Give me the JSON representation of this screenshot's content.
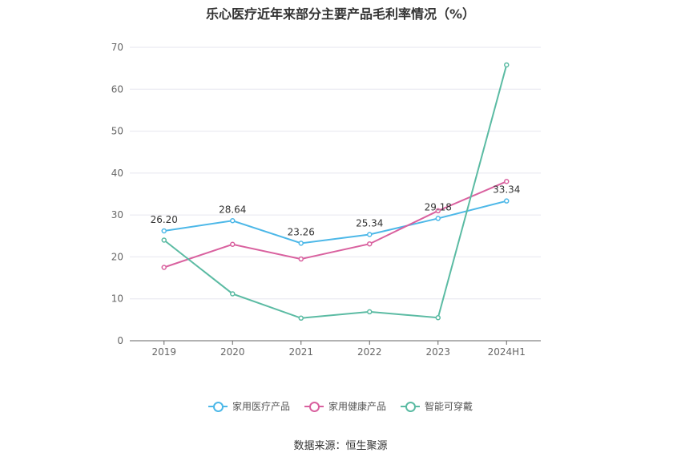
{
  "chart_data": {
    "type": "line",
    "title": "乐心医疗近年来部分主要产品毛利率情况（%）",
    "categories": [
      "2019",
      "2020",
      "2021",
      "2022",
      "2023",
      "2024H1"
    ],
    "ylim": [
      0,
      70
    ],
    "yticks": [
      0,
      10,
      20,
      30,
      40,
      50,
      60,
      70
    ],
    "grid": true,
    "legend_position": "bottom",
    "series": [
      {
        "name": "家用医疗产品",
        "color": "#4db8e8",
        "values": [
          26.2,
          28.64,
          23.26,
          25.34,
          29.18,
          33.34
        ],
        "labels": [
          "26.20",
          "28.64",
          "23.26",
          "25.34",
          "29.18",
          "33.34"
        ]
      },
      {
        "name": "家用健康产品",
        "color": "#d9619f",
        "values": [
          17.5,
          23.0,
          19.5,
          23.1,
          31.0,
          38.0
        ]
      },
      {
        "name": "智能可穿戴",
        "color": "#5bbba3",
        "values": [
          24.0,
          11.2,
          5.4,
          6.9,
          5.5,
          65.8
        ]
      }
    ]
  },
  "source": "数据来源：恒生聚源"
}
